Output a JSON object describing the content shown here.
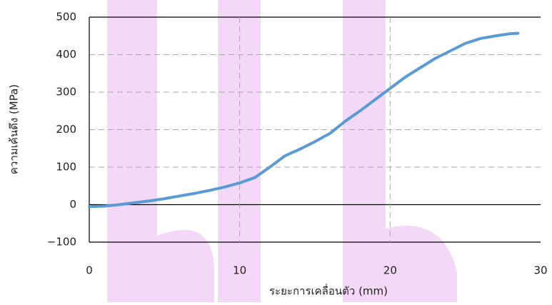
{
  "chart_data": {
    "type": "line",
    "x_label": "ระยะการเคลื่อนตัว (mm)",
    "y_label": "ความเค้นดึง (MPa)",
    "x": [
      0,
      1,
      2,
      3,
      4,
      5,
      6,
      7,
      8,
      9,
      10,
      11,
      12,
      13,
      14,
      15,
      16,
      17,
      18,
      19,
      20,
      21,
      22,
      23,
      24,
      25,
      26,
      27,
      28,
      28.5
    ],
    "series": [
      {
        "name": "stress",
        "color": "#5b9bd5",
        "values": [
          -5,
          -4,
          0,
          5,
          10,
          16,
          23,
          30,
          38,
          47,
          58,
          72,
          100,
          130,
          148,
          168,
          190,
          222,
          250,
          280,
          310,
          340,
          365,
          390,
          410,
          430,
          443,
          450,
          456,
          457
        ]
      }
    ],
    "xlim": [
      0,
      30
    ],
    "xticks": [
      0,
      10,
      20,
      30
    ],
    "ylim": [
      -100,
      500
    ],
    "yticks": [
      {
        "value": -100,
        "label": "−100"
      },
      0,
      100,
      200,
      300,
      400,
      500
    ],
    "grid": true
  }
}
